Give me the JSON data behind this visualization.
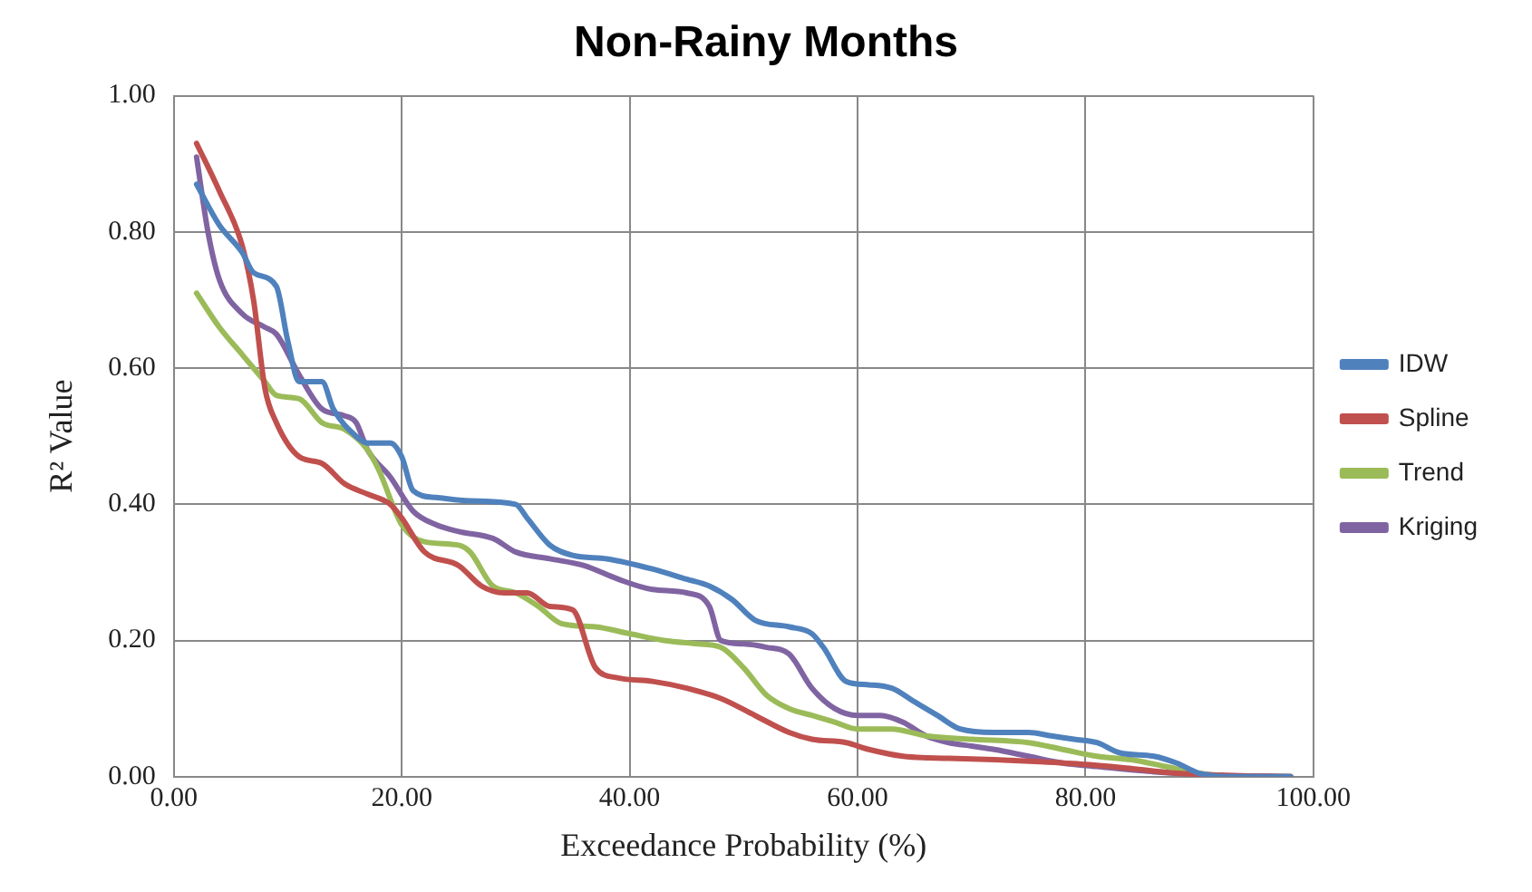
{
  "chart_data": {
    "type": "line",
    "title": "Non-Rainy Months",
    "xlabel": "Exceedance Probability (%)",
    "ylabel": "R² Value",
    "xlim": [
      0,
      100
    ],
    "xticks": [
      {
        "value": 0,
        "label": "0.00"
      },
      {
        "value": 20,
        "label": "20.00"
      },
      {
        "value": 40,
        "label": "40.00"
      },
      {
        "value": 60,
        "label": "60.00"
      },
      {
        "value": 80,
        "label": "80.00"
      },
      {
        "value": 100,
        "label": "100.00"
      }
    ],
    "ylim": [
      0,
      1
    ],
    "yticks": [
      {
        "value": 0,
        "label": "0.00"
      },
      {
        "value": 0.2,
        "label": "0.20"
      },
      {
        "value": 0.4,
        "label": "0.40"
      },
      {
        "value": 0.6,
        "label": "0.60"
      },
      {
        "value": 0.8,
        "label": "0.80"
      },
      {
        "value": 1,
        "label": "1.00"
      }
    ],
    "grid": true,
    "legend": "right",
    "marker": "none",
    "line_style": "solid",
    "series": [
      {
        "name": "IDW",
        "color": "#4f81bd",
        "x": [
          2,
          4,
          6,
          7,
          9,
          10,
          11,
          13,
          14,
          16,
          17,
          19,
          20,
          21,
          23,
          26,
          30,
          31,
          33,
          35,
          38,
          42,
          45,
          47,
          49,
          51,
          54,
          56,
          57,
          59,
          61,
          63,
          65,
          67,
          69,
          72,
          75,
          77,
          79,
          81,
          83,
          86,
          88,
          90,
          93,
          98
        ],
        "values": [
          0.87,
          0.81,
          0.77,
          0.74,
          0.72,
          0.64,
          0.58,
          0.58,
          0.54,
          0.5,
          0.49,
          0.49,
          0.47,
          0.42,
          0.41,
          0.405,
          0.4,
          0.38,
          0.34,
          0.325,
          0.32,
          0.305,
          0.29,
          0.28,
          0.26,
          0.23,
          0.22,
          0.21,
          0.19,
          0.14,
          0.135,
          0.13,
          0.11,
          0.09,
          0.07,
          0.065,
          0.065,
          0.06,
          0.055,
          0.05,
          0.035,
          0.03,
          0.02,
          0.005,
          0,
          0
        ]
      },
      {
        "name": "Spline",
        "color": "#c0504d",
        "x": [
          2,
          4,
          6,
          7,
          8,
          9,
          11,
          13,
          15,
          17,
          19,
          20,
          22,
          25,
          27,
          29,
          31,
          33,
          35,
          37,
          39,
          42,
          45,
          48,
          51,
          54,
          56,
          59,
          61,
          64,
          68,
          72,
          76,
          80,
          84,
          88,
          92,
          98
        ],
        "values": [
          0.93,
          0.86,
          0.78,
          0.7,
          0.57,
          0.52,
          0.47,
          0.46,
          0.43,
          0.415,
          0.4,
          0.38,
          0.33,
          0.31,
          0.28,
          0.27,
          0.27,
          0.25,
          0.245,
          0.16,
          0.145,
          0.14,
          0.13,
          0.115,
          0.09,
          0.065,
          0.055,
          0.05,
          0.04,
          0.03,
          0.027,
          0.025,
          0.022,
          0.018,
          0.012,
          0.005,
          0.002,
          0
        ]
      },
      {
        "name": "Trend",
        "color": "#9bbb59",
        "x": [
          2,
          4,
          6,
          8,
          9,
          11,
          13,
          15,
          17,
          18,
          20,
          22,
          25,
          26,
          28,
          30,
          32,
          34,
          37,
          40,
          43,
          46,
          48,
          50,
          52,
          54,
          56,
          58,
          60,
          63,
          66,
          70,
          75,
          78,
          81,
          84,
          87,
          90,
          93,
          98
        ],
        "values": [
          0.71,
          0.66,
          0.62,
          0.58,
          0.56,
          0.555,
          0.52,
          0.51,
          0.48,
          0.45,
          0.37,
          0.345,
          0.34,
          0.33,
          0.28,
          0.27,
          0.25,
          0.225,
          0.22,
          0.21,
          0.2,
          0.195,
          0.19,
          0.16,
          0.12,
          0.1,
          0.09,
          0.08,
          0.07,
          0.07,
          0.06,
          0.055,
          0.05,
          0.04,
          0.03,
          0.025,
          0.015,
          0.005,
          0,
          0
        ]
      },
      {
        "name": "Kriging",
        "color": "#8064a2",
        "x": [
          2,
          3,
          4,
          6,
          8,
          9,
          11,
          13,
          15,
          16,
          17,
          19,
          21,
          23,
          25,
          28,
          30,
          33,
          36,
          39,
          42,
          45,
          47,
          48,
          50,
          52,
          54,
          56,
          58,
          60,
          62,
          64,
          66,
          68,
          70,
          72,
          75,
          78,
          81,
          84,
          88,
          92,
          98
        ],
        "values": [
          0.91,
          0.8,
          0.73,
          0.68,
          0.66,
          0.65,
          0.59,
          0.54,
          0.53,
          0.52,
          0.48,
          0.44,
          0.39,
          0.37,
          0.36,
          0.35,
          0.33,
          0.32,
          0.31,
          0.29,
          0.275,
          0.27,
          0.25,
          0.2,
          0.195,
          0.19,
          0.18,
          0.13,
          0.1,
          0.09,
          0.09,
          0.08,
          0.06,
          0.05,
          0.045,
          0.04,
          0.03,
          0.02,
          0.015,
          0.01,
          0.005,
          0.002,
          0
        ]
      }
    ]
  }
}
